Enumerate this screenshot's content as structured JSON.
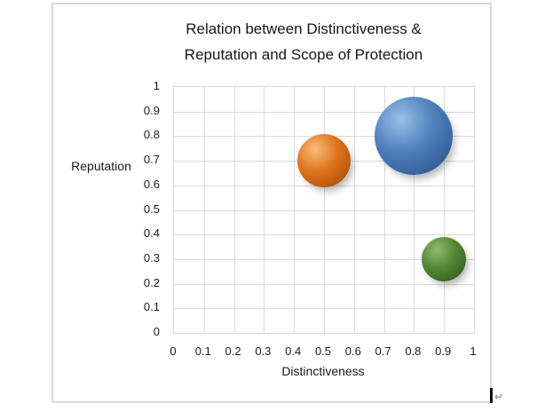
{
  "chart": {
    "title_line1": "Relation between Distinctiveness &",
    "title_line2": "Reputation and Scope of Protection",
    "x_axis": {
      "title": "Distinctiveness"
    },
    "y_axis": {
      "title": "Reputation"
    }
  },
  "chart_data": {
    "type": "scatter",
    "subtype": "bubble-3d",
    "title": "Relation between Distinctiveness & Reputation and Scope of Protection",
    "xlabel": "Distinctiveness",
    "ylabel": "Reputation",
    "xlim": [
      0,
      1
    ],
    "ylim": [
      0,
      1
    ],
    "x_ticks": [
      0,
      0.1,
      0.2,
      0.3,
      0.4,
      0.5,
      0.6,
      0.7,
      0.8,
      0.9,
      1
    ],
    "y_ticks": [
      0,
      0.1,
      0.2,
      0.3,
      0.4,
      0.5,
      0.6,
      0.7,
      0.8,
      0.9,
      1
    ],
    "grid": true,
    "legend": false,
    "series": [
      {
        "name": "bubble-blue",
        "x": 0.8,
        "y": 0.8,
        "radius_px": 44,
        "color": "#4f81bd",
        "shades": {
          "light": "#9cc0ec",
          "base": "#4f81bd",
          "mid": "#3a66a0",
          "dark": "#24446e"
        }
      },
      {
        "name": "bubble-orange",
        "x": 0.5,
        "y": 0.7,
        "radius_px": 30,
        "color": "#e0751f",
        "shades": {
          "light": "#f8bd7a",
          "base": "#e0751f",
          "mid": "#bd5c0e",
          "dark": "#8a4205"
        }
      },
      {
        "name": "bubble-green",
        "x": 0.9,
        "y": 0.3,
        "radius_px": 25,
        "color": "#4e7d33",
        "shades": {
          "light": "#8fbc6d",
          "base": "#548936",
          "mid": "#3f6b27",
          "dark": "#294a18"
        }
      }
    ]
  },
  "page": {
    "return_glyph": "↵"
  },
  "colors": {
    "grid": "#d9d9d9",
    "frame_border": "#d9d9d9",
    "text": "#1a1a1a"
  }
}
